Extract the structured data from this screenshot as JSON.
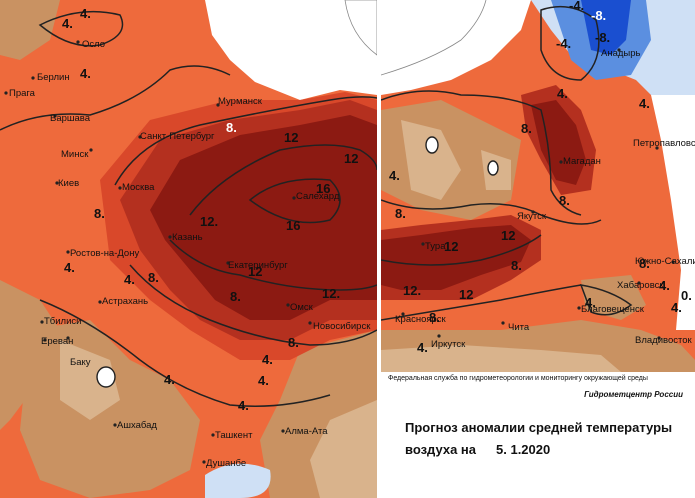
{
  "map": {
    "title_line1": "Прогноз аномалии средней температуры",
    "title_line2_prefix": "воздуха на",
    "date": "5. 1.2020",
    "agency": "Федеральная служба по гидрометеорологии и мониторингу окружающей среды",
    "center": "Гидрометцентр России",
    "colors": {
      "light": "#d9b38c",
      "tan": "#c99262",
      "orange": "#ee6a3c",
      "orange_dark": "#d9482a",
      "red": "#b4301f",
      "dark_red": "#8c1a12",
      "blue_light": "#cfe0f5",
      "blue": "#5b8fe0",
      "blue_dark": "#1a4fd0"
    },
    "west_cities": [
      "Осло",
      "Берлин",
      "Прага",
      "Варшава",
      "Минск",
      "Киев",
      "Санкт-Петербург",
      "Мурманск",
      "Москва",
      "Казань",
      "Ростов-на-Дону",
      "Астрахань",
      "Тбилиси",
      "Ереван",
      "Баку",
      "Ашхабад",
      "Ташкент",
      "Душанбе",
      "Алма-Ата",
      "Екатеринбург",
      "Омск",
      "Новосибирск",
      "Салехард"
    ],
    "east_cities": [
      "Анадырь",
      "Магадан",
      "Петропавловск-Камчатский",
      "Якутск",
      "Тура",
      "Южно-Сахалинск",
      "Хабаровск",
      "Благовещенск",
      "Владивосток",
      "Красноярск",
      "Иркутск",
      "Чита"
    ],
    "west_isolines": [
      "4.",
      "4.",
      "4.",
      "8.",
      "4.",
      "8.",
      "12",
      "12",
      "16",
      "16",
      "12.",
      "12",
      "12.",
      "8.",
      "8.",
      "8.",
      "4.",
      "4.",
      "4.",
      "4.",
      "4."
    ],
    "east_isolines": [
      "-4.",
      "-8.",
      "-4.",
      "-8.",
      "4.",
      "4.",
      "8.",
      "8.",
      "4.",
      "8.",
      "12",
      "12",
      "8.",
      "12.",
      "12",
      "8.",
      "4.",
      "4.",
      "4.",
      "8.",
      "4.",
      "0."
    ]
  }
}
